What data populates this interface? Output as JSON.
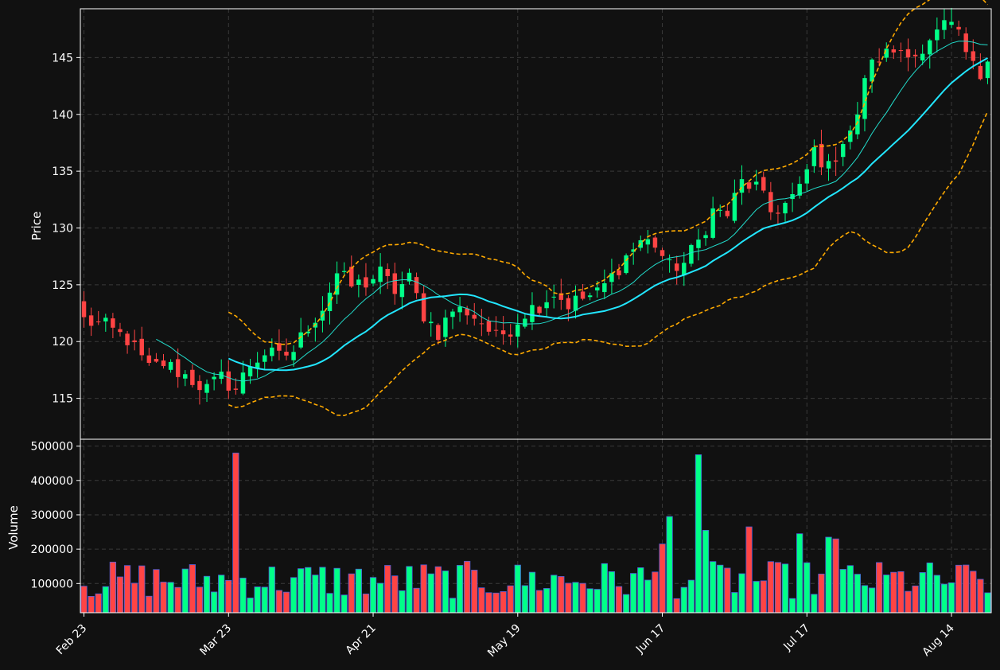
{
  "colors": {
    "background": "#111111",
    "up": "#00ff88",
    "down": "#ff4444",
    "volume_edge": "#4a5fd8",
    "ma_slow": "#22e6ff",
    "ma_fast": "#22ddcc",
    "bands": "#ffaa00",
    "grid": "#3a3a3a",
    "text": "#ffffff"
  },
  "chart_data": {
    "type": "candlestick",
    "grid": true,
    "price_panel": {
      "ylabel": "Price",
      "ylim": [
        111.4,
        149.3
      ],
      "yticks": [
        115,
        120,
        125,
        130,
        135,
        140,
        145
      ],
      "series": [
        {
          "name": "",
          "kind": "line",
          "color": "#22e6ff",
          "start_index": 20
        },
        {
          "name": "",
          "kind": "line",
          "color": "#22ddcc",
          "start_index": 10
        },
        {
          "name": "",
          "kind": "dashed-line",
          "color": "#ffaa00",
          "start_index": 20
        },
        {
          "name": "",
          "kind": "dashed-line",
          "color": "#ffaa00",
          "start_index": 20
        }
      ]
    },
    "volume_panel": {
      "ylabel": "Volume",
      "ylim": [
        15000,
        520000
      ],
      "yticks": [
        100000,
        200000,
        300000,
        400000,
        500000
      ]
    },
    "x_axis": {
      "start_date": "2024-02-23",
      "tick_labels": [
        "Feb 23",
        "Mar 23",
        "Apr 21",
        "May 19",
        "Jun 17",
        "Jul 17",
        "Aug 14"
      ],
      "tick_indices": [
        0,
        20,
        40,
        60,
        80,
        100,
        120
      ],
      "xlim": [
        -0.5,
        125.5
      ]
    },
    "close_anchors": [
      [
        0,
        121.9
      ],
      [
        3,
        121.3
      ],
      [
        6,
        120.2
      ],
      [
        9,
        117.6
      ],
      [
        11,
        118.1
      ],
      [
        14,
        117.0
      ],
      [
        17,
        115.8
      ],
      [
        19,
        116.8
      ],
      [
        21,
        115.8
      ],
      [
        23,
        118.0
      ],
      [
        25,
        119.0
      ],
      [
        27,
        118.6
      ],
      [
        29,
        119.2
      ],
      [
        31,
        121.4
      ],
      [
        33,
        123.0
      ],
      [
        35,
        126.0
      ],
      [
        37,
        124.9
      ],
      [
        39,
        125.2
      ],
      [
        41,
        126.0
      ],
      [
        43,
        124.5
      ],
      [
        45,
        125.5
      ],
      [
        47,
        122.4
      ],
      [
        49,
        120.8
      ],
      [
        51,
        122.8
      ],
      [
        53,
        122.7
      ],
      [
        55,
        121.7
      ],
      [
        57,
        120.3
      ],
      [
        59,
        121.2
      ],
      [
        61,
        122.6
      ],
      [
        63,
        123.3
      ],
      [
        65,
        124.3
      ],
      [
        67,
        123.3
      ],
      [
        69,
        123.8
      ],
      [
        71,
        124.2
      ],
      [
        73,
        125.7
      ],
      [
        75,
        127.5
      ],
      [
        77,
        128.9
      ],
      [
        79,
        128.6
      ],
      [
        81,
        126.5
      ],
      [
        83,
        126.9
      ],
      [
        85,
        128.8
      ],
      [
        87,
        131.5
      ],
      [
        89,
        131.2
      ],
      [
        91,
        134.0
      ],
      [
        93,
        133.6
      ],
      [
        95,
        131.4
      ],
      [
        97,
        132.1
      ],
      [
        99,
        133.3
      ],
      [
        101,
        136.8
      ],
      [
        103,
        135.2
      ],
      [
        105,
        137.8
      ],
      [
        107,
        139.5
      ],
      [
        108,
        143.5
      ],
      [
        110,
        145.0
      ],
      [
        112,
        145.6
      ],
      [
        114,
        145.8
      ],
      [
        116,
        145.0
      ],
      [
        118,
        147.0
      ],
      [
        120,
        148.0
      ],
      [
        122,
        145.8
      ],
      [
        123,
        145.5
      ],
      [
        124,
        143.5
      ],
      [
        125,
        144.6
      ]
    ],
    "volume_spikes": [
      [
        21,
        480000
      ],
      [
        80,
        215000
      ],
      [
        81,
        295000
      ],
      [
        85,
        475000
      ],
      [
        86,
        255000
      ],
      [
        92,
        265000
      ],
      [
        99,
        245000
      ],
      [
        103,
        235000
      ],
      [
        104,
        230000
      ]
    ]
  }
}
